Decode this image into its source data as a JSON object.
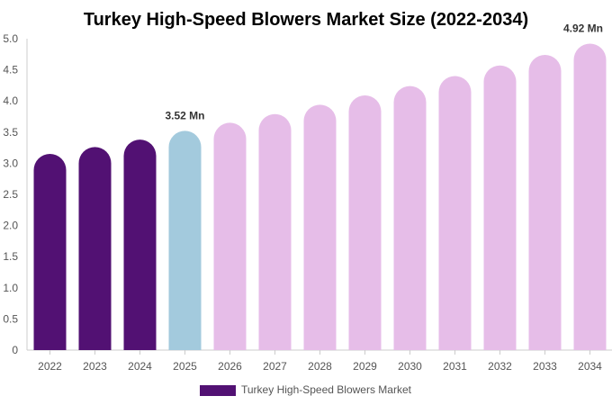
{
  "chart_data": {
    "type": "bar",
    "title": "Turkey High-Speed Blowers Market Size (2022-2034)",
    "categories": [
      "2022",
      "2023",
      "2024",
      "2025",
      "2026",
      "2027",
      "2028",
      "2029",
      "2030",
      "2031",
      "2032",
      "2033",
      "2034"
    ],
    "series": [
      {
        "name": "Turkey High-Speed Blowers Market",
        "values": [
          3.15,
          3.26,
          3.38,
          3.52,
          3.65,
          3.79,
          3.94,
          4.09,
          4.24,
          4.4,
          4.57,
          4.74,
          4.92
        ]
      }
    ],
    "bar_colors": {
      "historical": "#521173",
      "current": "#a3cadd",
      "forecast": "#e6bde8"
    },
    "bar_phase": [
      "historical",
      "historical",
      "historical",
      "current",
      "forecast",
      "forecast",
      "forecast",
      "forecast",
      "forecast",
      "forecast",
      "forecast",
      "forecast",
      "forecast"
    ],
    "data_labels": [
      {
        "category": "2025",
        "text": "3.52 Mn"
      },
      {
        "category": "2034",
        "text": "4.92 Mn"
      }
    ],
    "yticks": [
      "0",
      "0.5",
      "1.0",
      "1.5",
      "2.0",
      "2.5",
      "3.0",
      "3.5",
      "4.0",
      "4.5",
      "5.0"
    ],
    "ylim": [
      0,
      5.0
    ],
    "xlabel": "",
    "ylabel": "",
    "grid": false,
    "legend": {
      "position": "bottom-center",
      "label": "Turkey High-Speed Blowers Market",
      "color": "#521173"
    }
  }
}
